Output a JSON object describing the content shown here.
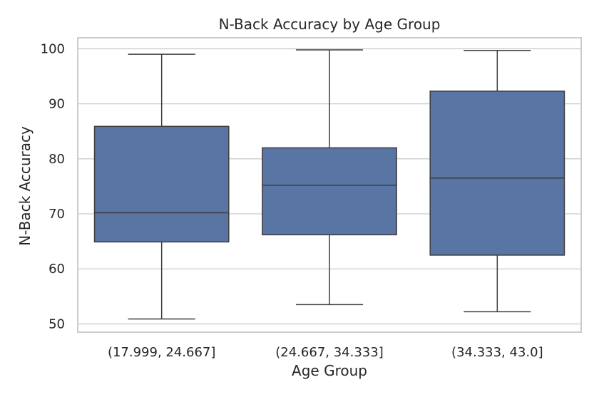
{
  "chart_data": {
    "type": "box",
    "title": "N-Back Accuracy by Age Group",
    "xlabel": "Age Group",
    "ylabel": "N-Back Accuracy",
    "categories": [
      "(17.999, 24.667]",
      "(24.667, 34.333]",
      "(34.333, 43.0]"
    ],
    "boxes": [
      {
        "category": "(17.999, 24.667]",
        "whisker_low": 50.9,
        "q1": 64.9,
        "median": 70.2,
        "q3": 85.9,
        "whisker_high": 99.0
      },
      {
        "category": "(24.667, 34.333]",
        "whisker_low": 53.5,
        "q1": 66.2,
        "median": 75.2,
        "q3": 82.0,
        "whisker_high": 99.8
      },
      {
        "category": "(34.333, 43.0]",
        "whisker_low": 52.2,
        "q1": 62.5,
        "median": 76.5,
        "q3": 92.3,
        "whisker_high": 99.7
      }
    ],
    "ylim": [
      48.5,
      102.0
    ],
    "yticks": [
      50,
      60,
      70,
      80,
      90,
      100
    ],
    "grid": "horizontal",
    "legend": "none",
    "colors": {
      "box_fill": "#5875a4",
      "line": "#3d3d3d",
      "grid": "#cccccc",
      "frame": "#cccccc"
    }
  }
}
